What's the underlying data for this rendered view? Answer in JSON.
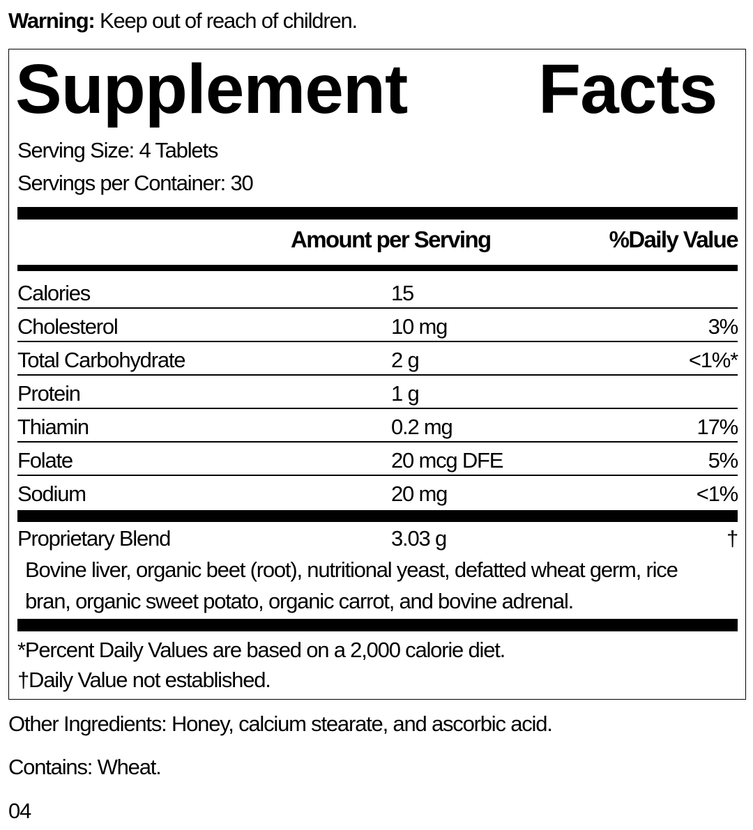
{
  "warning": {
    "label": "Warning:",
    "text": "Keep out of reach of children."
  },
  "title": {
    "word1": "Supplement",
    "word2": "Facts"
  },
  "serving_size": "Serving Size: 4 Tablets",
  "servings_per_container": "Servings per Container: 30",
  "headers": {
    "amount": "Amount per Serving",
    "daily_value": "%Daily Value"
  },
  "rows": [
    {
      "name": "Calories",
      "amount": "15",
      "dv": ""
    },
    {
      "name": "Cholesterol",
      "amount": "10 mg",
      "dv": "3%"
    },
    {
      "name": "Total Carbohydrate",
      "amount": "2 g",
      "dv": "<1%*"
    },
    {
      "name": "Protein",
      "amount": "1 g",
      "dv": ""
    },
    {
      "name": "Thiamin",
      "amount": "0.2 mg",
      "dv": "17%"
    },
    {
      "name": "Folate",
      "amount": "20 mcg DFE",
      "dv": "5%"
    },
    {
      "name": "Sodium",
      "amount": "20 mg",
      "dv": "<1%"
    }
  ],
  "blend": {
    "name": "Proprietary Blend",
    "amount": "3.03 g",
    "dv": "†",
    "line1": "Bovine liver, organic beet (root), nutritional yeast, defatted wheat germ, rice",
    "line2": "bran, organic sweet potato, organic carrot, and bovine adrenal."
  },
  "footnotes": [
    "*Percent Daily Values are based on a 2,000 calorie diet.",
    "†Daily Value not established."
  ],
  "other_ingredients": "Other Ingredients: Honey, calcium stearate, and ascorbic acid.",
  "contains": "Contains: Wheat.",
  "code": "04"
}
